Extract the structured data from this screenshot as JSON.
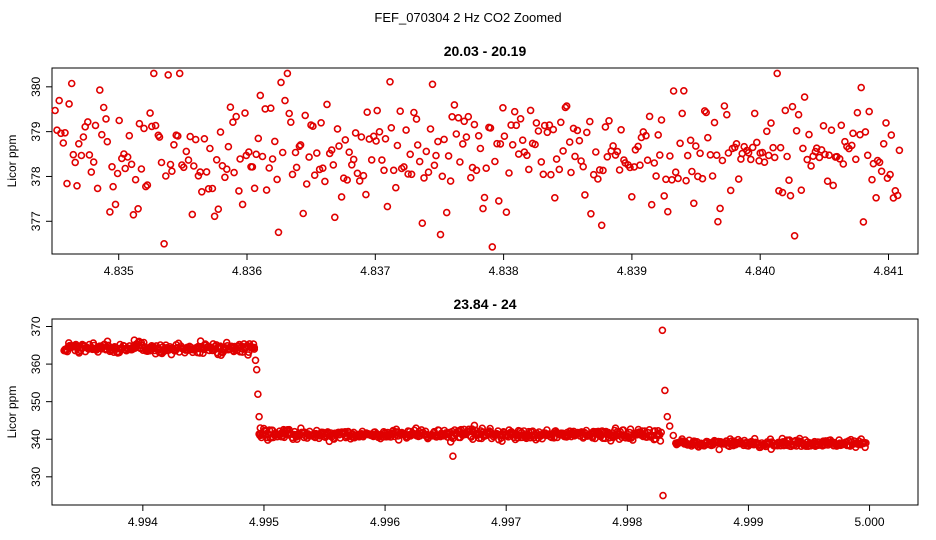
{
  "figure_title": "FEF_070304  2 Hz CO2 Zoomed",
  "chart_data": [
    {
      "type": "scatter",
      "title": "20.03 - 20.19",
      "xlabel": "",
      "ylabel": "Licor ppm",
      "xlim": [
        4.83448,
        4.84123
      ],
      "ylim": [
        376.27,
        380.42
      ],
      "xticks": [
        "4.835",
        "4.836",
        "4.837",
        "4.838",
        "4.839",
        "4.840",
        "4.841"
      ],
      "yticks": [
        "377",
        "378",
        "379",
        "380"
      ],
      "color": "#e00000",
      "n_points": 420,
      "x_range": [
        4.8345,
        4.8411
      ],
      "y_center": 378.55,
      "y_spread_sd": 0.7,
      "y_min": 376.4,
      "y_max": 380.3
    },
    {
      "type": "scatter",
      "title": "23.84 - 24",
      "xlabel": "",
      "ylabel": "Licor ppm",
      "xlim": [
        4.99325,
        5.0004
      ],
      "ylim": [
        322.5,
        372
      ],
      "xticks": [
        "4.994",
        "4.995",
        "4.996",
        "4.997",
        "4.998",
        "4.999",
        "5.000"
      ],
      "yticks": [
        "330",
        "340",
        "350",
        "360",
        "370"
      ],
      "color": "#e00000",
      "x_range": [
        4.99335,
        4.99997
      ],
      "segments": [
        {
          "x": [
            4.99335,
            4.99492
          ],
          "y": 364.2,
          "noise_sd": 0.7
        },
        {
          "x": [
            4.99496,
            4.99828
          ],
          "y": 341.3,
          "noise_sd": 0.7
        },
        {
          "x": [
            4.9984,
            4.99997
          ],
          "y": 338.9,
          "noise_sd": 0.5
        }
      ],
      "transitions": [
        {
          "x": 4.99492,
          "y": 364.0
        },
        {
          "x": 4.99493,
          "y": 361.0
        },
        {
          "x": 4.99494,
          "y": 358.5
        },
        {
          "x": 4.99495,
          "y": 352.0
        },
        {
          "x": 4.99496,
          "y": 346.0
        },
        {
          "x": 4.99497,
          "y": 343.0
        },
        {
          "x": 4.99829,
          "y": 369.0
        },
        {
          "x": 4.998295,
          "y": 325.0
        },
        {
          "x": 4.99831,
          "y": 353.0
        },
        {
          "x": 4.99833,
          "y": 346.0
        },
        {
          "x": 4.99835,
          "y": 343.5
        },
        {
          "x": 4.99838,
          "y": 341.0
        },
        {
          "x": 4.99656,
          "y": 335.5
        }
      ]
    }
  ]
}
